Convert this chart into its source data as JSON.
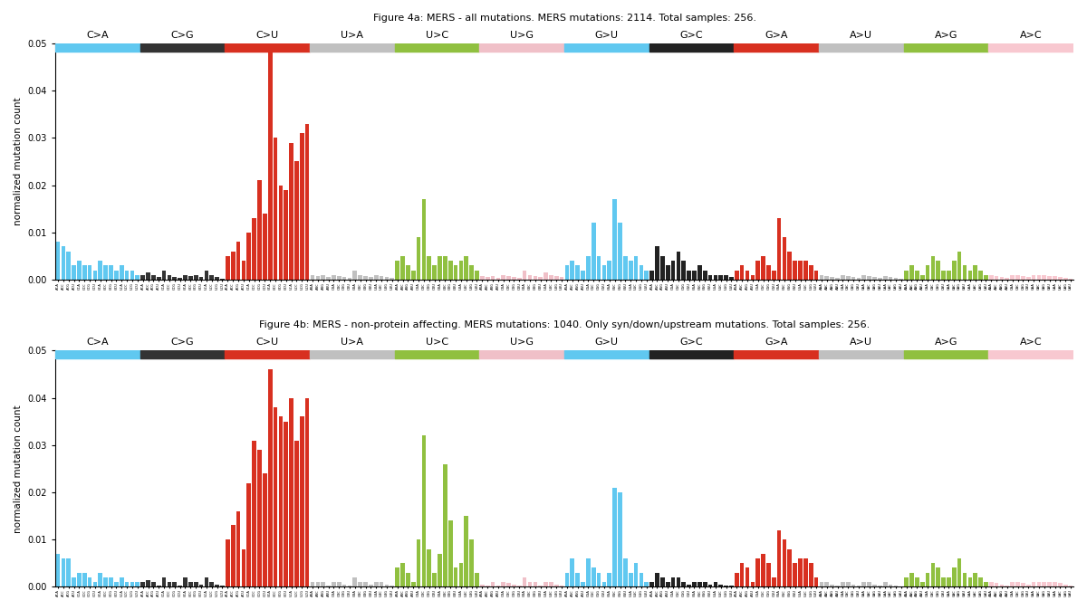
{
  "title1": "Figure 4a: MERS - all mutations. MERS mutations: 2114. Total samples: 256.",
  "title2": "Figure 4b: MERS - non-protein affecting. MERS mutations: 1040. Only syn/down/upstream mutations. Total samples: 256.",
  "ylabel": "normalized mutation count",
  "mutation_types": [
    "C>A",
    "C>G",
    "C>U",
    "U>A",
    "U>C",
    "U>G",
    "G>U",
    "G>C",
    "G>A",
    "A>U",
    "A>G",
    "A>C"
  ],
  "group_band_colors": [
    "#60c8f0",
    "#333333",
    "#d83020",
    "#c0c0c0",
    "#90c040",
    "#f0c0c8",
    "#60c8f0",
    "#222222",
    "#d83020",
    "#c0c0c0",
    "#90c040",
    "#f8c8d0"
  ],
  "bases": [
    "A",
    "C",
    "G",
    "U"
  ],
  "ylim": [
    0,
    0.05
  ],
  "bar_width": 0.8,
  "n_per_group": 16,
  "vals_top": [
    0.008,
    0.007,
    0.006,
    0.003,
    0.004,
    0.003,
    0.003,
    0.002,
    0.004,
    0.003,
    0.003,
    0.002,
    0.003,
    0.002,
    0.002,
    0.001,
    0.001,
    0.0015,
    0.001,
    0.0005,
    0.002,
    0.001,
    0.0005,
    0.0003,
    0.001,
    0.0008,
    0.001,
    0.0005,
    0.002,
    0.001,
    0.0005,
    0.0002,
    0.005,
    0.006,
    0.008,
    0.004,
    0.01,
    0.013,
    0.021,
    0.014,
    0.048,
    0.03,
    0.02,
    0.019,
    0.029,
    0.025,
    0.031,
    0.033,
    0.001,
    0.0008,
    0.001,
    0.0005,
    0.001,
    0.0008,
    0.0005,
    0.0003,
    0.002,
    0.001,
    0.0008,
    0.0005,
    0.001,
    0.0008,
    0.0005,
    0.0003,
    0.004,
    0.005,
    0.003,
    0.002,
    0.009,
    0.017,
    0.005,
    0.003,
    0.005,
    0.005,
    0.004,
    0.003,
    0.004,
    0.005,
    0.003,
    0.002,
    0.0008,
    0.0005,
    0.0008,
    0.0003,
    0.001,
    0.0008,
    0.0005,
    0.0003,
    0.002,
    0.001,
    0.0008,
    0.0005,
    0.0015,
    0.001,
    0.0008,
    0.0005,
    0.003,
    0.004,
    0.003,
    0.002,
    0.005,
    0.012,
    0.005,
    0.003,
    0.004,
    0.017,
    0.012,
    0.005,
    0.004,
    0.005,
    0.003,
    0.002,
    0.002,
    0.007,
    0.005,
    0.003,
    0.004,
    0.006,
    0.004,
    0.002,
    0.002,
    0.003,
    0.002,
    0.001,
    0.001,
    0.001,
    0.001,
    0.0005,
    0.002,
    0.003,
    0.002,
    0.001,
    0.004,
    0.005,
    0.003,
    0.002,
    0.013,
    0.009,
    0.006,
    0.004,
    0.004,
    0.004,
    0.003,
    0.002,
    0.001,
    0.0008,
    0.0005,
    0.0003,
    0.001,
    0.0008,
    0.0005,
    0.0003,
    0.001,
    0.0008,
    0.0005,
    0.0003,
    0.0008,
    0.0005,
    0.0003,
    0.0002,
    0.002,
    0.003,
    0.002,
    0.001,
    0.003,
    0.005,
    0.004,
    0.002,
    0.002,
    0.004,
    0.006,
    0.003,
    0.002,
    0.003,
    0.002,
    0.001,
    0.001,
    0.0008,
    0.0005,
    0.0003,
    0.001,
    0.001,
    0.0008,
    0.0005,
    0.001,
    0.001,
    0.001,
    0.0008,
    0.0008,
    0.0005,
    0.0003,
    0.0002
  ],
  "vals_bot": [
    0.007,
    0.006,
    0.006,
    0.002,
    0.003,
    0.003,
    0.002,
    0.001,
    0.003,
    0.002,
    0.002,
    0.001,
    0.002,
    0.001,
    0.001,
    0.001,
    0.001,
    0.0015,
    0.001,
    0.0003,
    0.002,
    0.001,
    0.001,
    0.0003,
    0.002,
    0.001,
    0.001,
    0.0005,
    0.002,
    0.001,
    0.0005,
    0.0002,
    0.01,
    0.013,
    0.016,
    0.008,
    0.022,
    0.031,
    0.029,
    0.024,
    0.046,
    0.038,
    0.036,
    0.035,
    0.04,
    0.031,
    0.036,
    0.04,
    0.001,
    0.001,
    0.001,
    0.0003,
    0.001,
    0.001,
    0.0005,
    0.0002,
    0.002,
    0.001,
    0.001,
    0.0005,
    0.001,
    0.001,
    0.0005,
    0.0002,
    0.004,
    0.005,
    0.003,
    0.001,
    0.01,
    0.032,
    0.008,
    0.003,
    0.007,
    0.026,
    0.014,
    0.004,
    0.005,
    0.015,
    0.01,
    0.003,
    0.0005,
    0.0003,
    0.001,
    0.0002,
    0.001,
    0.0008,
    0.0005,
    0.0002,
    0.002,
    0.001,
    0.001,
    0.0003,
    0.001,
    0.001,
    0.0005,
    0.0003,
    0.003,
    0.006,
    0.003,
    0.001,
    0.006,
    0.004,
    0.003,
    0.001,
    0.003,
    0.021,
    0.02,
    0.006,
    0.003,
    0.005,
    0.003,
    0.001,
    0.001,
    0.003,
    0.002,
    0.001,
    0.002,
    0.002,
    0.001,
    0.0005,
    0.001,
    0.001,
    0.001,
    0.0005,
    0.001,
    0.0005,
    0.0003,
    0.0002,
    0.003,
    0.005,
    0.004,
    0.001,
    0.006,
    0.007,
    0.005,
    0.002,
    0.012,
    0.01,
    0.008,
    0.005,
    0.006,
    0.006,
    0.005,
    0.002,
    0.001,
    0.001,
    0.0005,
    0.0002,
    0.001,
    0.001,
    0.0005,
    0.0002,
    0.001,
    0.001,
    0.0005,
    0.0002,
    0.001,
    0.0005,
    0.0003,
    0.0001,
    0.002,
    0.003,
    0.002,
    0.001,
    0.003,
    0.005,
    0.004,
    0.002,
    0.002,
    0.004,
    0.006,
    0.003,
    0.002,
    0.003,
    0.002,
    0.001,
    0.001,
    0.0008,
    0.0005,
    0.0002,
    0.001,
    0.001,
    0.0008,
    0.0004,
    0.001,
    0.001,
    0.001,
    0.001,
    0.001,
    0.0008,
    0.0004,
    0.0002
  ]
}
